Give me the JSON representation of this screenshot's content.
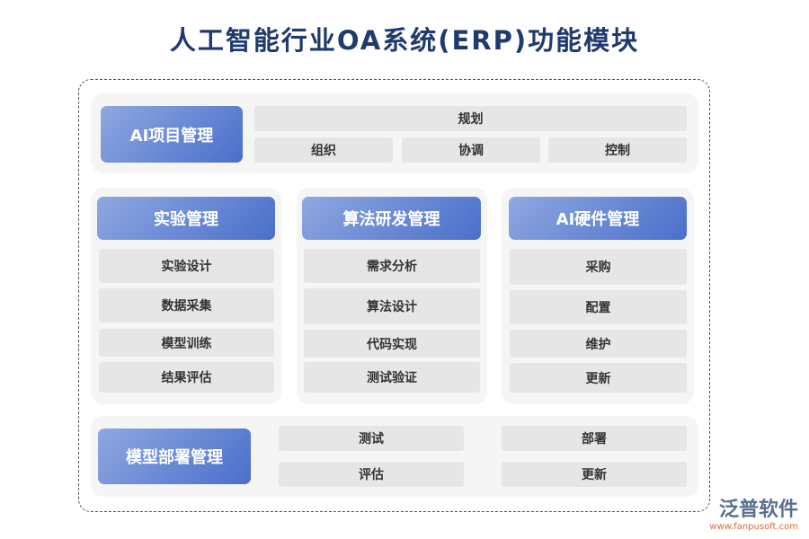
{
  "title": "人工智能行业OA系统(ERP)功能模块",
  "project": {
    "head": "AI项目管理",
    "items": [
      "规划",
      "组织",
      "协调",
      "控制"
    ]
  },
  "experiment": {
    "head": "实验管理",
    "items": [
      "实验设计",
      "数据采集",
      "模型训练",
      "结果评估"
    ]
  },
  "algorithm": {
    "head": "算法研发管理",
    "items": [
      "需求分析",
      "算法设计",
      "代码实现",
      "测试验证"
    ]
  },
  "hardware": {
    "head": "AI硬件管理",
    "items": [
      "采购",
      "配置",
      "维护",
      "更新"
    ]
  },
  "deploy": {
    "head": "模型部署管理",
    "items": [
      "测试",
      "部署",
      "评估",
      "更新"
    ]
  },
  "logo": {
    "name": "泛普软件",
    "url": "www.fanpusoft.com"
  }
}
